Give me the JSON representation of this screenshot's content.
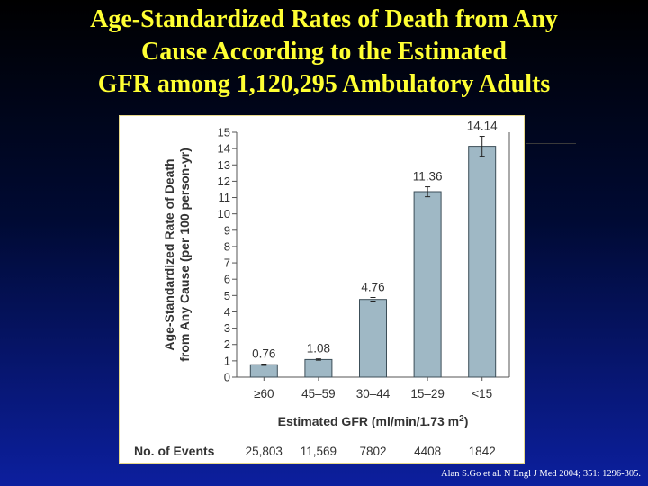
{
  "slide": {
    "title_lines": [
      "Age-Standardized Rates of Death from Any",
      "Cause According to the Estimated",
      "GFR among 1,120,295 Ambulatory Adults"
    ],
    "citation": "Alan S.Go et al. N Engl J Med 2004; 351: 1296-305.",
    "colors": {
      "background_top": "#000000",
      "background_bottom": "#0c1f9e",
      "title": "#ffff33",
      "bar_fill": "#9fb8c5",
      "bar_stroke": "#3c4e58"
    }
  },
  "chart_data": {
    "type": "bar",
    "categories": [
      "≥60",
      "45–59",
      "30–44",
      "15–29",
      "<15"
    ],
    "values": [
      0.76,
      1.08,
      4.76,
      11.36,
      14.14
    ],
    "value_labels": [
      "0.76",
      "1.08",
      "4.76",
      "11.36",
      "14.14"
    ],
    "error_bars": [
      [
        0.72,
        0.8
      ],
      [
        1.04,
        1.12
      ],
      [
        4.66,
        4.88
      ],
      [
        11.05,
        11.66
      ],
      [
        13.53,
        14.75
      ]
    ],
    "xlabel_prefix": "Estimated GFR (ml/min/1.73 m",
    "xlabel_superscript": "2",
    "xlabel_suffix": ")",
    "ylabel_lines": [
      "Age-Standardized Rate of Death",
      "from Any Cause (per 100 person-yr)"
    ],
    "ylim": [
      0,
      15
    ],
    "yticks": [
      0,
      1,
      2,
      3,
      4,
      5,
      6,
      7,
      8,
      9,
      10,
      11,
      12,
      13,
      14,
      15
    ],
    "events_label": "No. of Events",
    "events": [
      "25,803",
      "11,569",
      "7802",
      "4408",
      "1842"
    ],
    "grid": false
  }
}
